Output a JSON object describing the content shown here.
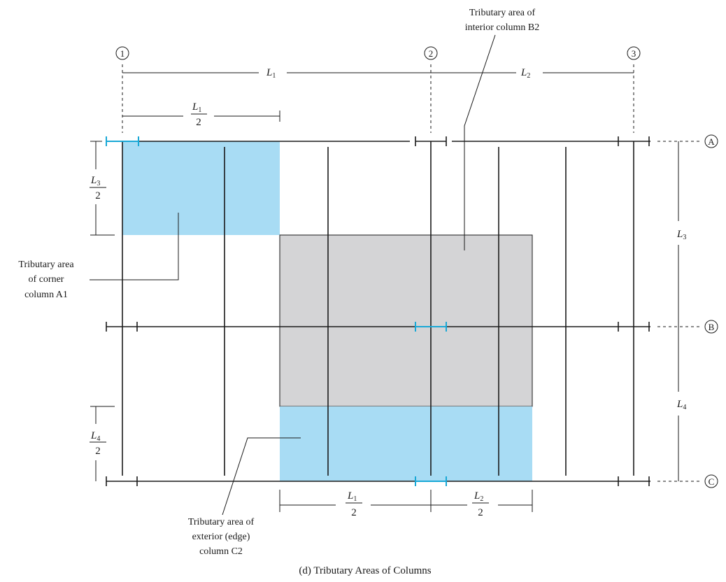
{
  "caption": "(d) Tributary Areas of Columns",
  "grid": {
    "columns": [
      "1",
      "2",
      "3"
    ],
    "rows": [
      "A",
      "B",
      "C"
    ]
  },
  "spans": {
    "L1": {
      "main": "L",
      "sub": "1"
    },
    "L2": {
      "main": "L",
      "sub": "2"
    },
    "L3": {
      "main": "L",
      "sub": "3"
    },
    "L4": {
      "main": "L",
      "sub": "4"
    },
    "half_denominator": "2"
  },
  "callouts": {
    "interior_b2": [
      "Tributary area of",
      "interior column B2"
    ],
    "corner_a1": [
      "Tributary area",
      "of corner",
      "column A1"
    ],
    "edge_c2": [
      "Tributary area of",
      "exterior (edge)",
      "column C2"
    ]
  },
  "colors": {
    "tributary_blue": "#a8dcf4",
    "tributary_gray": "#d4d4d6",
    "column_marker": "#19a8d6",
    "line": "#1a1a1a"
  }
}
